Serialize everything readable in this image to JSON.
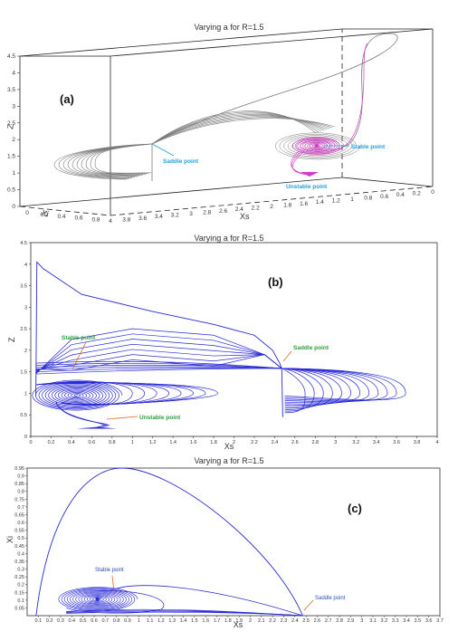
{
  "chart_data": [
    {
      "type": "line",
      "panel_label": "(a)",
      "title": "Varying a for R=1.5",
      "xlabel": "Xs",
      "ylabel": "Xi",
      "zlabel": "Z",
      "x_ticks": [
        "4",
        "3.8",
        "3.6",
        "3.4",
        "3.2",
        "3",
        "2.8",
        "2.6",
        "2.4",
        "2.2",
        "2",
        "1.8",
        "1.6",
        "1.4",
        "1.2",
        "1",
        "0.8",
        "0.6",
        "0.4",
        "0.2",
        "0"
      ],
      "y_ticks": [
        "0",
        "0.2",
        "0.4",
        "0.6",
        "0.8"
      ],
      "z_ticks": [
        "0",
        "0.5",
        "1",
        "1.5",
        "2",
        "2.5",
        "3",
        "3.5",
        "4",
        "4.5"
      ],
      "points": [
        {
          "label": "Saddle point",
          "x": 2.47,
          "y": 0,
          "z": 1.58
        },
        {
          "label": "Stable point",
          "x": 0.48,
          "y": 0.06,
          "z": 1.7
        },
        {
          "label": "Unstable point",
          "x": 0.66,
          "y": 0.06,
          "z": 0.35
        }
      ],
      "series": [
        {
          "color": "#7a7a7a"
        },
        {
          "color": "#d43ac8"
        }
      ]
    },
    {
      "type": "line",
      "panel_label": "(b)",
      "title": "Varying a for R=1.5",
      "xlabel": "Xs",
      "ylabel": "Z",
      "xlim": [
        0,
        4
      ],
      "ylim": [
        0,
        4.5
      ],
      "x_ticks": [
        "0",
        "0.2",
        "0.4",
        "0.6",
        "0.8",
        "1",
        "1.2",
        "1.4",
        "1.6",
        "1.8",
        "2",
        "2.2",
        "2.4",
        "2.6",
        "2.8",
        "3",
        "3.2",
        "3.4",
        "3.6",
        "3.8",
        "4"
      ],
      "y_ticks": [
        "0",
        "0.5",
        "1",
        "1.5",
        "2",
        "2.5",
        "3",
        "3.5",
        "4",
        "4.5"
      ],
      "points": [
        {
          "label": "Stable point",
          "x": 0.45,
          "z": 0.95
        },
        {
          "label": "Saddle point",
          "x": 2.47,
          "z": 1.58
        },
        {
          "label": "Unstable point",
          "x": 0.66,
          "z": 0.22
        }
      ],
      "series": [
        {
          "color": "#2b2bd6"
        }
      ]
    },
    {
      "type": "line",
      "panel_label": "(c)",
      "title": "Varying a for R=1.5",
      "xlabel": "Xs",
      "ylabel": "Xi",
      "xlim": [
        0,
        3.7
      ],
      "ylim": [
        0,
        0.95
      ],
      "x_ticks": [
        "0.1",
        "0.2",
        "0.3",
        "0.4",
        "0.5",
        "0.6",
        "0.7",
        "0.8",
        "0.9",
        "1",
        "1.1",
        "1.2",
        "1.3",
        "1.4",
        "1.5",
        "1.6",
        "1.7",
        "1.8",
        "1.9",
        "2",
        "2.1",
        "2.2",
        "2.3",
        "2.4",
        "2.5",
        "2.6",
        "2.7",
        "2.8",
        "2.9",
        "3",
        "3.1",
        "3.2",
        "3.3",
        "3.4",
        "3.5",
        "3.6",
        "3.7"
      ],
      "y_ticks": [
        "0.05",
        "0.1",
        "0.15",
        "0.2",
        "0.25",
        "0.3",
        "0.35",
        "0.4",
        "0.45",
        "0.5",
        "0.55",
        "0.6",
        "0.65",
        "0.7",
        "0.75",
        "0.8",
        "0.85",
        "0.9",
        "0.95"
      ],
      "points": [
        {
          "label": "Stable point",
          "x": 0.63,
          "y": 0.105
        },
        {
          "label": "Saddle point",
          "x": 2.47,
          "y": 0.0
        }
      ],
      "series": [
        {
          "color": "#2b2bd6"
        }
      ]
    }
  ]
}
